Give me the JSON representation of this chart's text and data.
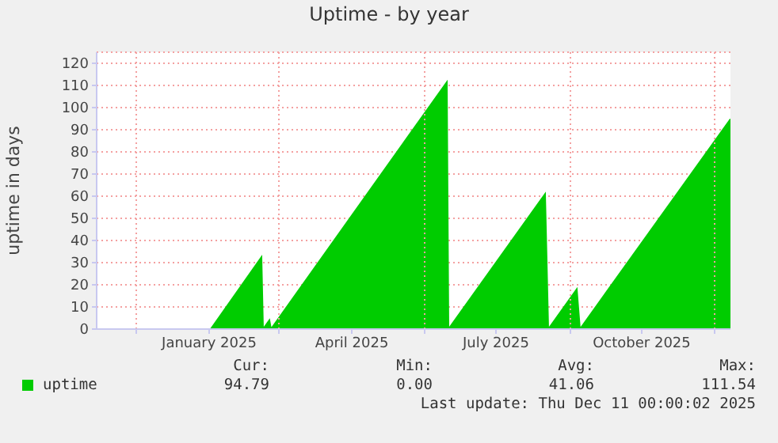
{
  "chart_data": {
    "type": "area",
    "title": "Uptime - by year",
    "ylabel": "uptime in days",
    "xlim": [
      "2024-11-06",
      "2025-12-11"
    ],
    "xticks": [
      {
        "value": "2024-12-01",
        "label": null
      },
      {
        "value": "2025-01-16",
        "label": "January 2025"
      },
      {
        "value": "2025-03-01",
        "label": null
      },
      {
        "value": "2025-04-16",
        "label": "April 2025"
      },
      {
        "value": "2025-06-01",
        "label": null
      },
      {
        "value": "2025-07-16",
        "label": "July 2025"
      },
      {
        "value": "2025-09-01",
        "label": null
      },
      {
        "value": "2025-10-16",
        "label": "October 2025"
      },
      {
        "value": "2025-12-01",
        "label": null
      }
    ],
    "ylim": [
      0,
      125
    ],
    "yticks": [
      0,
      10,
      20,
      30,
      40,
      50,
      60,
      70,
      80,
      90,
      100,
      110,
      120
    ],
    "grid": true,
    "legend": "bottom left",
    "series": [
      {
        "name": "uptime",
        "color": "#00cc00",
        "x": [
          "2025-01-17",
          "2025-02-18",
          "2025-02-19",
          "2025-02-23",
          "2025-02-24",
          "2025-06-15",
          "2025-06-16",
          "2025-08-16",
          "2025-08-18",
          "2025-09-05",
          "2025-09-07",
          "2025-12-11"
        ],
        "values": [
          0,
          32.5,
          0,
          4,
          0,
          111.5,
          0,
          61,
          0,
          18,
          0,
          94.8
        ]
      }
    ],
    "annotations": [
      "Cur:",
      "Min:",
      "Avg:",
      "Max:",
      "94.79",
      "0.00",
      "41.06",
      "111.54",
      "Last update: Thu Dec 11 00:00:02 2025"
    ]
  }
}
